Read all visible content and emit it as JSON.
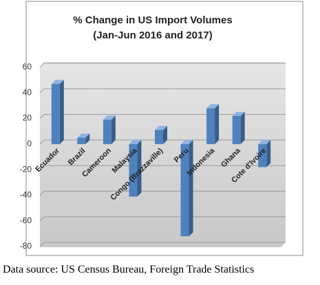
{
  "chart_data": {
    "type": "bar",
    "title": "% Change in US Import Volumes",
    "subtitle": "(Jan-Jun 2016 and 2017)",
    "categories": [
      "Ecuador",
      "Brazil",
      "Cameroon",
      "Malaysia",
      "Congo (Brazzaville)",
      "Peru",
      "Indonesia",
      "Ghana",
      "Cote d'Ivoire"
    ],
    "values": [
      47,
      5,
      19,
      -41,
      11,
      -72,
      28,
      22,
      -18
    ],
    "color": "#4f81bd",
    "ylim": [
      -80,
      60
    ],
    "yticks": [
      -80,
      -60,
      -40,
      -20,
      0,
      20,
      40,
      60
    ],
    "grid": true
  },
  "source": "Data source:  US Census Bureau, Foreign Trade Statistics"
}
